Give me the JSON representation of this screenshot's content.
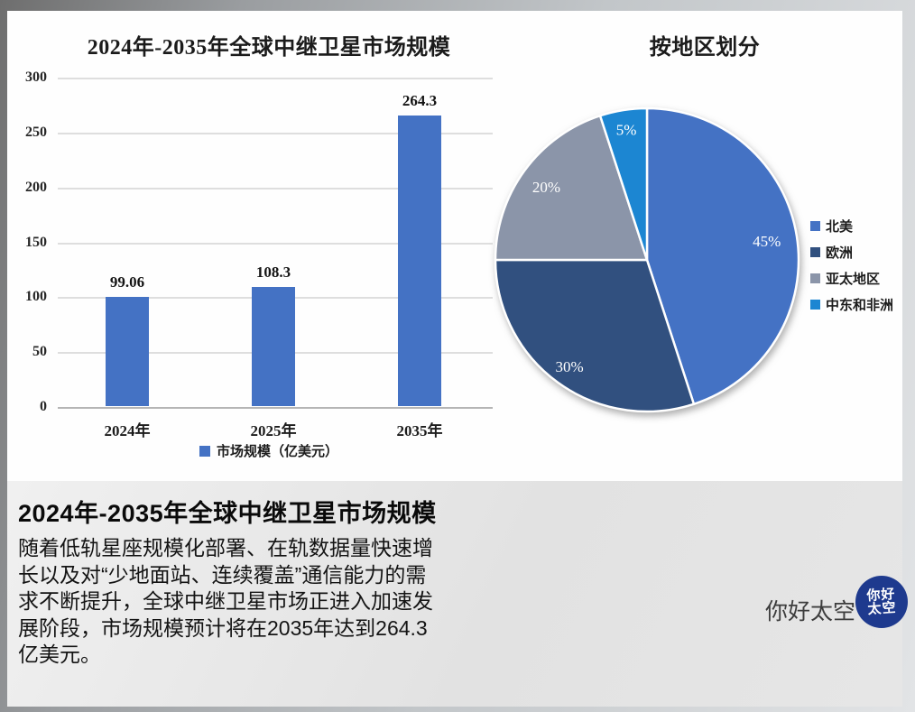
{
  "chart_data": [
    {
      "type": "bar",
      "title": "2024年-2035年全球中继卫星市场规模",
      "categories": [
        "2024年",
        "2025年",
        "2035年"
      ],
      "values": [
        99.06,
        108.3,
        264.3
      ],
      "value_labels": [
        "99.06",
        "108.3",
        "264.3"
      ],
      "legend": [
        "市场规模（亿美元）"
      ],
      "legend_position": "bottom",
      "xlabel": "",
      "ylabel": "",
      "ylim": [
        0,
        300
      ],
      "yticks": [
        0,
        50,
        100,
        150,
        200,
        250,
        300
      ],
      "grid": true,
      "bar_color": "#4472C4",
      "gridline_color": "#dedede"
    },
    {
      "type": "pie",
      "title": "按地区划分",
      "start_angle_deg": 0,
      "direction": "clockwise",
      "legend_position": "right",
      "slices": [
        {
          "label": "北美",
          "value": 45,
          "pct_label": "45%",
          "color": "#4472C4"
        },
        {
          "label": "欧洲",
          "value": 30,
          "pct_label": "30%",
          "color": "#31507F"
        },
        {
          "label": "亚太地区",
          "value": 20,
          "pct_label": "20%",
          "color": "#8B95A9"
        },
        {
          "label": "中东和非洲",
          "value": 5,
          "pct_label": "5%",
          "color": "#1C86D2"
        }
      ]
    }
  ],
  "caption": {
    "heading": "2024年-2035年全球中继卫星市场规模",
    "body": "随着低轨星座规模化部署、在轨数据量快速增长以及对“少地面站、连续覆盖”通信能力的需求不断提升，全球中继卫星市场正进入加速发展阶段，市场规模预计将在2035年达到264.3亿美元。"
  },
  "branding": {
    "name": "你好太空",
    "logo_line1": "你好",
    "logo_line2": "太空",
    "logo_bg": "#1e3a8e"
  }
}
